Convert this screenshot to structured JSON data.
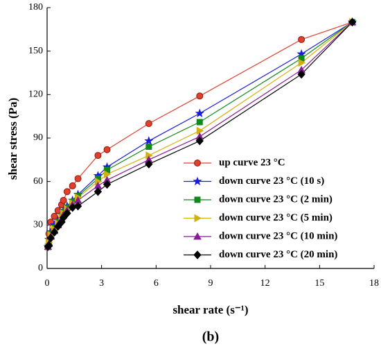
{
  "chart_data": {
    "type": "line",
    "y_label": "shear stress (Pa)",
    "x_label": "shear rate (s⁻¹)",
    "caption": "(b)",
    "x": [
      0.05,
      0.1,
      0.2,
      0.4,
      0.6,
      0.8,
      0.9,
      1.1,
      1.4,
      1.7,
      2.8,
      3.3,
      5.6,
      8.4,
      14,
      16.8
    ],
    "series": [
      {
        "name": "up curve 23 °C",
        "color": "#e0402c",
        "marker": "circle",
        "values": [
          15,
          24,
          32,
          36,
          40,
          44,
          47,
          53,
          57,
          62,
          78,
          82,
          100,
          119,
          158,
          170
        ]
      },
      {
        "name": "down curve 23 °C (10 s)",
        "color": "#1a1ae0",
        "marker": "star",
        "values": [
          15,
          20,
          25,
          30,
          33,
          37,
          40,
          43,
          47,
          51,
          64,
          70,
          88,
          107,
          148,
          170
        ]
      },
      {
        "name": "down curve 23 °C (2 min)",
        "color": "#10881a",
        "marker": "square",
        "values": [
          15,
          19,
          24,
          28,
          32,
          36,
          39,
          42,
          46,
          50,
          62,
          68,
          84,
          101,
          145,
          170
        ]
      },
      {
        "name": "down curve 23 °C (5 min)",
        "color": "#d2b010",
        "marker": "triangle-right",
        "values": [
          15,
          18,
          23,
          27,
          31,
          35,
          38,
          41,
          45,
          49,
          60,
          65,
          78,
          95,
          142,
          170
        ]
      },
      {
        "name": "down curve 23 °C (10 min)",
        "color": "#8a1a9a",
        "marker": "triangle-up",
        "values": [
          15,
          17,
          22,
          26,
          30,
          34,
          37,
          40,
          44,
          47,
          57,
          61,
          75,
          91,
          137,
          170
        ]
      },
      {
        "name": "down curve 23 °C (20 min)",
        "color": "#000000",
        "marker": "diamond",
        "values": [
          15,
          16,
          21,
          25,
          29,
          32,
          35,
          38,
          42,
          43,
          53,
          58,
          72,
          88,
          134,
          170
        ]
      }
    ],
    "xlim": [
      0,
      18
    ],
    "xticks": [
      0,
      3,
      6,
      9,
      12,
      15,
      18
    ],
    "ylim": [
      0,
      180
    ],
    "yticks": [
      0,
      30,
      60,
      90,
      120,
      150,
      180
    ]
  }
}
